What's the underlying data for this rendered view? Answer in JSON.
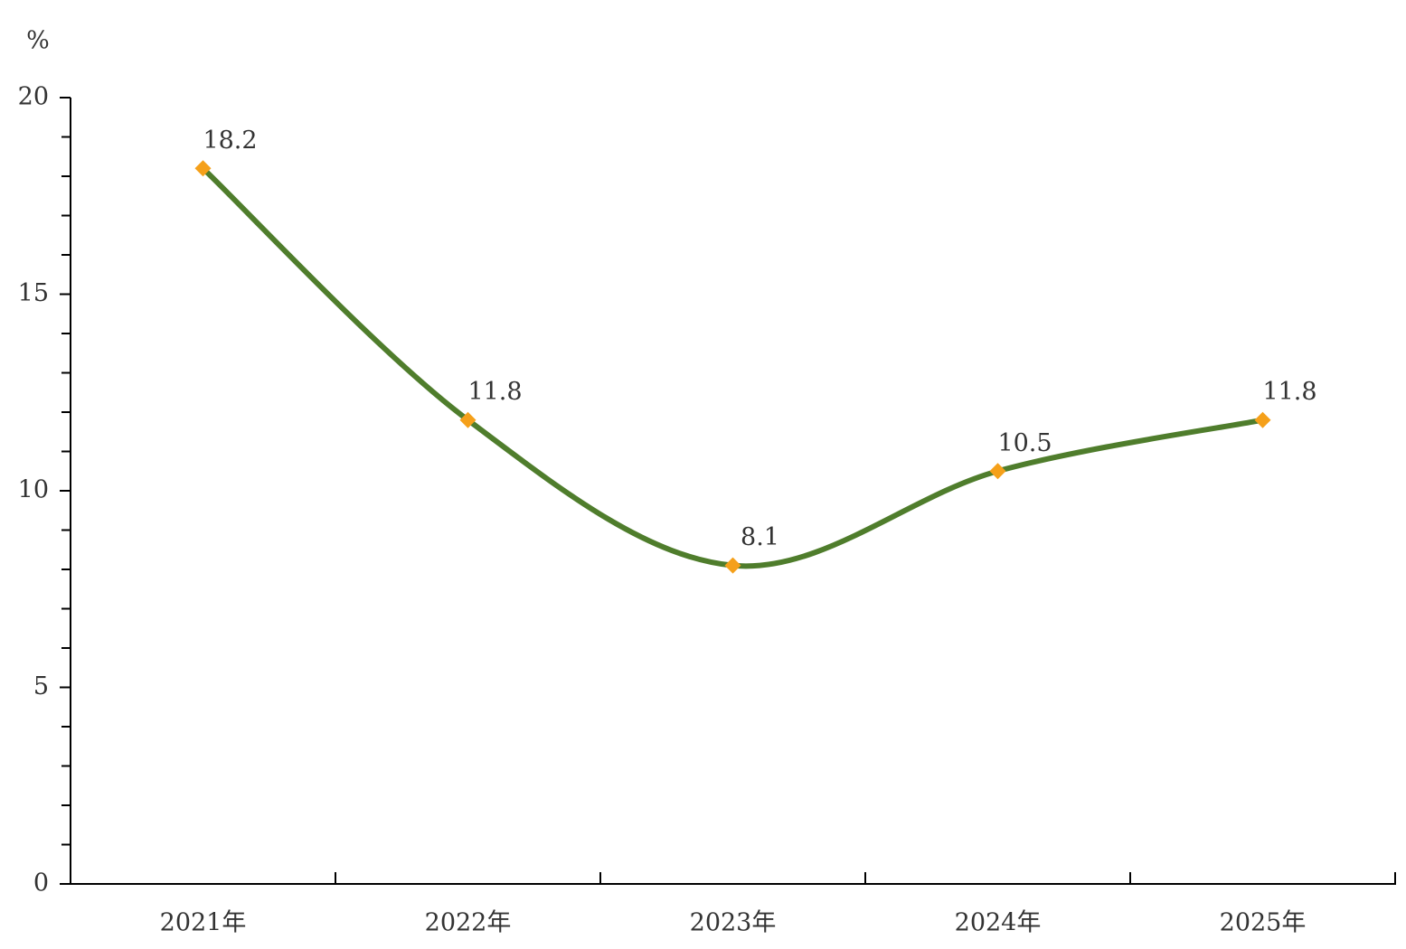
{
  "chart_data": {
    "type": "line",
    "y_label": "%",
    "categories": [
      "2021年",
      "2022年",
      "2023年",
      "2024年",
      "2025年"
    ],
    "series": [
      {
        "color": "#4f7d2c",
        "marker_color": "#f5a01a",
        "values": [
          18.2,
          11.8,
          8.1,
          10.5,
          11.8
        ]
      }
    ],
    "ylim": [
      0,
      20
    ],
    "yticks": [
      0,
      5,
      10,
      15,
      20
    ],
    "yminorticks": [
      1,
      2,
      3,
      4,
      6,
      7,
      8,
      9,
      11,
      12,
      13,
      14,
      16,
      17,
      18,
      19
    ],
    "smooth": true,
    "data_labels": true
  }
}
